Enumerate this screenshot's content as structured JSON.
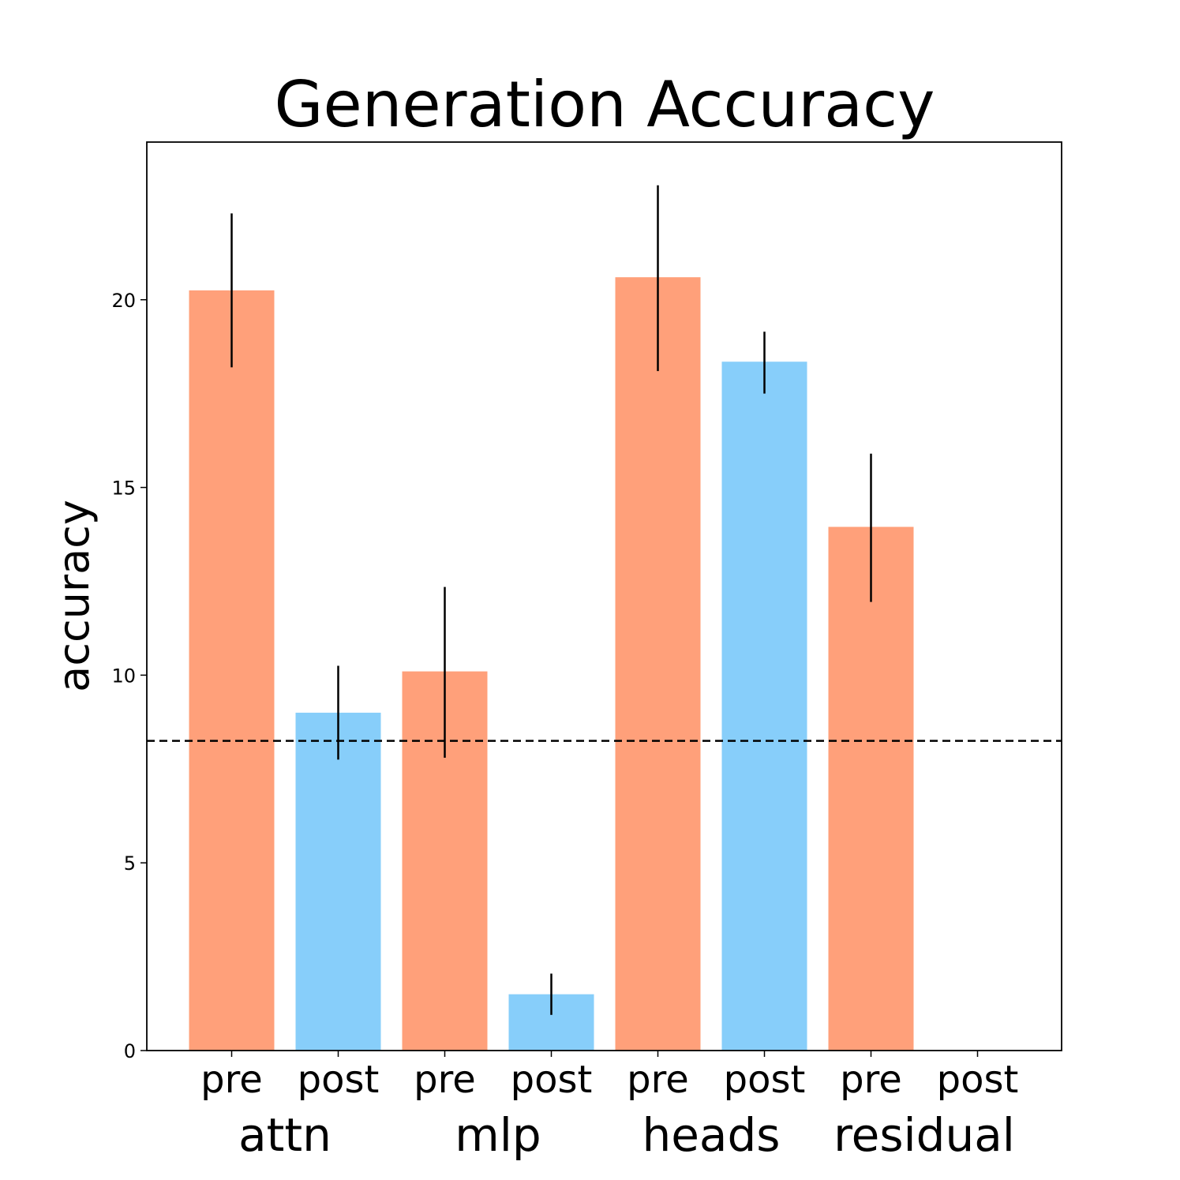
{
  "chart_data": {
    "type": "bar",
    "title": "Generation Accuracy",
    "xlabel": "",
    "ylabel": "accuracy",
    "ylim": [
      0,
      24.2
    ],
    "yticks": [
      0,
      5,
      10,
      15,
      20
    ],
    "grid": false,
    "legend": "none",
    "categories": [
      "pre",
      "post",
      "pre",
      "post",
      "pre",
      "post",
      "pre",
      "post"
    ],
    "groups": [
      "attn",
      "mlp",
      "heads",
      "residual"
    ],
    "values": [
      20.25,
      9.0,
      10.1,
      1.5,
      20.6,
      18.35,
      13.95,
      0
    ],
    "error_low": [
      18.2,
      7.75,
      7.8,
      0.95,
      18.1,
      17.5,
      11.95,
      null
    ],
    "error_high": [
      22.3,
      10.25,
      12.35,
      2.05,
      23.05,
      19.15,
      15.9,
      null
    ],
    "bar_colors": [
      "#ffa07a",
      "#87cefa",
      "#ffa07a",
      "#87cefa",
      "#ffa07a",
      "#87cefa",
      "#ffa07a",
      "#87cefa"
    ],
    "baseline": 8.25,
    "baseline_style": "dashed"
  }
}
